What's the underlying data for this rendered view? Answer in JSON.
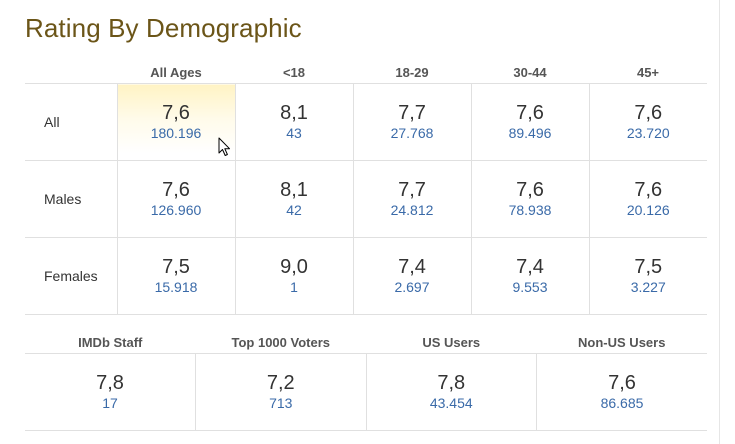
{
  "title": "Rating By Demographic",
  "columns": [
    "All Ages",
    "<18",
    "18-29",
    "30-44",
    "45+"
  ],
  "rows": [
    {
      "label": "All",
      "cells": [
        {
          "rating": "7,6",
          "votes": "180.196"
        },
        {
          "rating": "8,1",
          "votes": "43"
        },
        {
          "rating": "7,7",
          "votes": "27.768"
        },
        {
          "rating": "7,6",
          "votes": "89.496"
        },
        {
          "rating": "7,6",
          "votes": "23.720"
        }
      ]
    },
    {
      "label": "Males",
      "cells": [
        {
          "rating": "7,6",
          "votes": "126.960"
        },
        {
          "rating": "8,1",
          "votes": "42"
        },
        {
          "rating": "7,7",
          "votes": "24.812"
        },
        {
          "rating": "7,6",
          "votes": "78.938"
        },
        {
          "rating": "7,6",
          "votes": "20.126"
        }
      ]
    },
    {
      "label": "Females",
      "cells": [
        {
          "rating": "7,5",
          "votes": "15.918"
        },
        {
          "rating": "9,0",
          "votes": "1"
        },
        {
          "rating": "7,4",
          "votes": "2.697"
        },
        {
          "rating": "7,4",
          "votes": "9.553"
        },
        {
          "rating": "7,5",
          "votes": "3.227"
        }
      ]
    }
  ],
  "special": {
    "columns": [
      "IMDb Staff",
      "Top 1000 Voters",
      "US Users",
      "Non-US Users"
    ],
    "cells": [
      {
        "rating": "7,8",
        "votes": "17"
      },
      {
        "rating": "7,2",
        "votes": "713"
      },
      {
        "rating": "7,8",
        "votes": "43.454"
      },
      {
        "rating": "7,6",
        "votes": "86.685"
      }
    ]
  },
  "colors": {
    "title": "#6b5518",
    "votes_link": "#3a6aa8",
    "highlight": "#fff3c4"
  },
  "cursor_icon": "mouse-pointer-icon"
}
